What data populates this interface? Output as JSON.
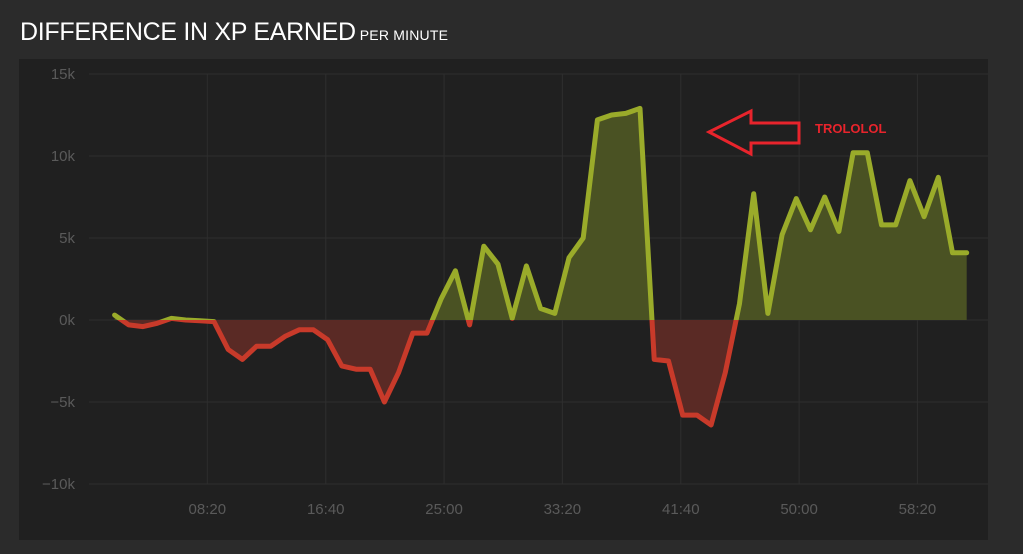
{
  "header": {
    "title": "DIFFERENCE IN XP EARNED",
    "subtitle": "PER MINUTE"
  },
  "colors": {
    "positive": "#9aab2a",
    "positive_fill": "#4a5223",
    "negative": "#c83a2a",
    "negative_fill": "#5a2a25",
    "annotation": "#e8242c"
  },
  "annotation": {
    "text": "TROLOLOL",
    "icon": "arrow-left-outline-icon"
  },
  "chart_data": {
    "type": "area",
    "title": "DIFFERENCE IN XP EARNED",
    "subtitle": "PER MINUTE",
    "xlabel": "",
    "ylabel": "",
    "ylim": [
      -10000,
      15000
    ],
    "xlim_minutes": [
      0,
      63.3
    ],
    "grid": true,
    "y_ticks": [
      15000,
      10000,
      5000,
      0,
      -5000,
      -10000
    ],
    "y_tick_labels": [
      "15k",
      "10k",
      "5k",
      "0k",
      "−5k",
      "−10k"
    ],
    "x_ticks": [
      8.33,
      16.67,
      25,
      33.33,
      41.67,
      50,
      58.33
    ],
    "x_tick_labels": [
      "08:20",
      "16:40",
      "25:00",
      "33:20",
      "41:40",
      "50:00",
      "58:20"
    ],
    "series": [
      {
        "x": [
          0,
          1,
          2,
          3,
          4,
          5,
          6,
          7,
          8,
          9,
          10,
          11,
          12,
          13,
          14,
          15,
          16,
          17,
          18,
          19,
          20,
          21,
          22,
          23,
          24,
          25,
          26,
          27,
          28,
          29,
          30,
          31,
          32,
          33,
          34,
          35,
          36,
          37,
          38,
          39,
          40,
          41,
          42,
          43,
          44,
          45,
          46,
          47,
          48,
          49,
          50,
          51,
          52,
          53,
          54,
          55,
          56,
          57,
          58,
          59,
          60
        ],
        "y": [
          300,
          -300,
          -400,
          -200,
          100,
          0,
          -50,
          -100,
          -1800,
          -2400,
          -1600,
          -1600,
          -1000,
          -600,
          -600,
          -1200,
          -2800,
          -3000,
          -3000,
          -5000,
          -3200,
          -800,
          -800,
          1300,
          3000,
          -300,
          4500,
          3400,
          100,
          3300,
          700,
          400,
          3800,
          5000,
          12200,
          12500,
          12600,
          12900,
          -2400,
          -2500,
          -5800,
          -5800,
          -6400,
          -3200,
          1000,
          7700,
          400,
          5200,
          7400,
          5500,
          7500,
          5400,
          10200,
          10200,
          5800,
          5800,
          8500,
          6300,
          8700,
          4100,
          4100
        ]
      }
    ]
  }
}
